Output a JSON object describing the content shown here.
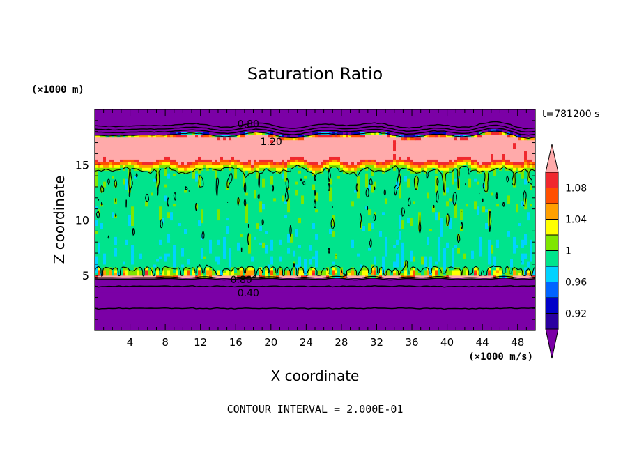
{
  "chart_data": {
    "type": "heatmap",
    "title": "Saturation Ratio",
    "xlabel": "X coordinate",
    "ylabel": "Z coordinate",
    "x_units": "(×1000 m/s)",
    "y_units": "(×1000 m)",
    "time_label": "t=781200 s",
    "footer": "CONTOUR INTERVAL = 2.000E-01",
    "xlim": [
      0,
      50
    ],
    "ylim": [
      0,
      20
    ],
    "x_ticks": [
      "4",
      "8",
      "12",
      "16",
      "20",
      "24",
      "28",
      "32",
      "36",
      "40",
      "44",
      "48"
    ],
    "y_ticks": [
      "5",
      "10",
      "15"
    ],
    "colorbar": {
      "labels": [
        "1.08",
        "1.04",
        "1",
        "0.96",
        "0.92"
      ],
      "levels": [
        0.9,
        0.92,
        0.94,
        0.96,
        0.98,
        1.0,
        1.02,
        1.04,
        1.06,
        1.08,
        1.1
      ],
      "colors": [
        "#7B00A6",
        "#2A00A0",
        "#0000C8",
        "#0063FF",
        "#00D2FF",
        "#00E48C",
        "#7FE600",
        "#FFFF00",
        "#FFA000",
        "#FF5000",
        "#F0282E",
        "#FFAAAA"
      ]
    },
    "contour_labels": [
      {
        "text": "0.80",
        "x": 16.2,
        "y": 18.7
      },
      {
        "text": "1.20",
        "x": 18.8,
        "y": 17.1
      },
      {
        "text": "0.80",
        "x": 15.4,
        "y": 4.6
      },
      {
        "text": "0.40",
        "x": 16.2,
        "y": 3.4
      }
    ]
  }
}
